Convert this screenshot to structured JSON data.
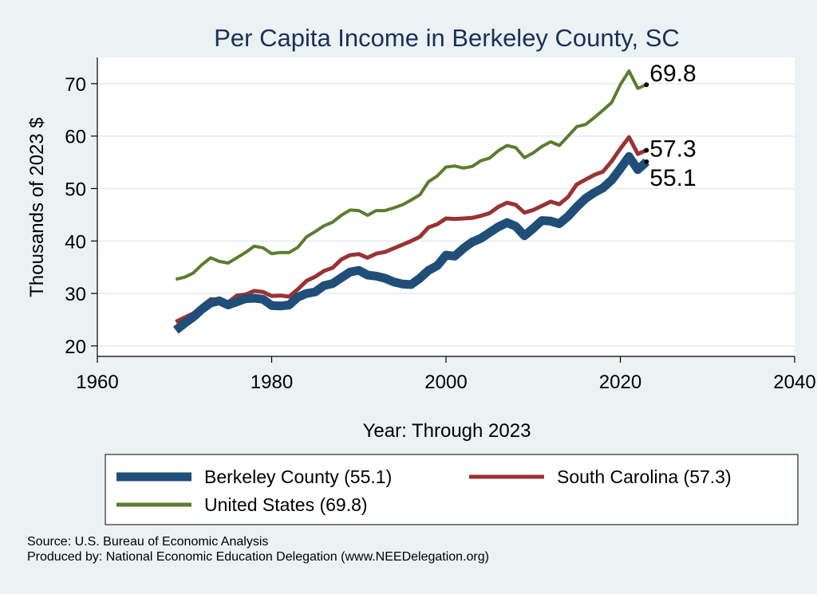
{
  "chart_data": {
    "type": "line",
    "title": "Per Capita Income in Berkeley County, SC",
    "xlabel": "Year: Through 2023",
    "ylabel": "Thousands of 2023 $",
    "xlim": [
      1960,
      2040
    ],
    "ylim": [
      18,
      75
    ],
    "xticks": [
      1960,
      1980,
      2000,
      2020,
      2040
    ],
    "yticks": [
      20,
      30,
      40,
      50,
      60,
      70
    ],
    "grid": true,
    "legend_position": "bottom",
    "series": [
      {
        "name": "United States",
        "legend_label": "United States (69.8)",
        "end_label": "69.8",
        "color": "#5a7d2e",
        "x": [
          1969,
          1970,
          1971,
          1972,
          1973,
          1974,
          1975,
          1976,
          1977,
          1978,
          1979,
          1980,
          1981,
          1982,
          1983,
          1984,
          1985,
          1986,
          1987,
          1988,
          1989,
          1990,
          1991,
          1992,
          1993,
          1994,
          1995,
          1996,
          1997,
          1998,
          1999,
          2000,
          2001,
          2002,
          2003,
          2004,
          2005,
          2006,
          2007,
          2008,
          2009,
          2010,
          2011,
          2012,
          2013,
          2014,
          2015,
          2016,
          2017,
          2018,
          2019,
          2020,
          2021,
          2022,
          2023
        ],
        "y": [
          32.7,
          33.1,
          33.9,
          35.5,
          36.8,
          36.1,
          35.8,
          36.8,
          37.8,
          39.0,
          38.7,
          37.6,
          37.8,
          37.8,
          38.8,
          40.8,
          41.8,
          42.9,
          43.6,
          44.9,
          45.9,
          45.8,
          44.9,
          45.8,
          45.8,
          46.3,
          46.9,
          47.8,
          48.8,
          51.3,
          52.4,
          54.1,
          54.3,
          53.9,
          54.2,
          55.3,
          55.8,
          57.2,
          58.2,
          57.8,
          55.9,
          56.8,
          58.0,
          58.9,
          58.2,
          60.0,
          61.8,
          62.2,
          63.5,
          64.9,
          66.4,
          69.8,
          72.4,
          69.1,
          69.8
        ]
      },
      {
        "name": "South Carolina",
        "legend_label": "South Carolina (57.3)",
        "end_label": "57.3",
        "color": "#993333",
        "x": [
          1969,
          1970,
          1971,
          1972,
          1973,
          1974,
          1975,
          1976,
          1977,
          1978,
          1979,
          1980,
          1981,
          1982,
          1983,
          1984,
          1985,
          1986,
          1987,
          1988,
          1989,
          1990,
          1991,
          1992,
          1993,
          1994,
          1995,
          1996,
          1997,
          1998,
          1999,
          2000,
          2001,
          2002,
          2003,
          2004,
          2005,
          2006,
          2007,
          2008,
          2009,
          2010,
          2011,
          2012,
          2013,
          2014,
          2015,
          2016,
          2017,
          2018,
          2019,
          2020,
          2021,
          2022,
          2023
        ],
        "y": [
          24.6,
          25.4,
          26.2,
          27.6,
          28.9,
          28.8,
          28.3,
          29.6,
          29.8,
          30.5,
          30.3,
          29.5,
          29.6,
          29.4,
          30.8,
          32.4,
          33.2,
          34.3,
          34.9,
          36.5,
          37.3,
          37.5,
          36.8,
          37.6,
          37.9,
          38.6,
          39.3,
          40.0,
          40.8,
          42.6,
          43.2,
          44.3,
          44.2,
          44.3,
          44.4,
          44.8,
          45.3,
          46.5,
          47.3,
          46.9,
          45.4,
          45.9,
          46.7,
          47.5,
          47.0,
          48.4,
          50.8,
          51.7,
          52.6,
          53.2,
          55.2,
          57.6,
          59.8,
          56.6,
          57.3
        ]
      },
      {
        "name": "Berkeley County",
        "legend_label": "Berkeley County (55.1)",
        "end_label": "55.1",
        "color": "#1f4e79",
        "x": [
          1969,
          1970,
          1971,
          1972,
          1973,
          1974,
          1975,
          1976,
          1977,
          1978,
          1979,
          1980,
          1981,
          1982,
          1983,
          1984,
          1985,
          1986,
          1987,
          1988,
          1989,
          1990,
          1991,
          1992,
          1993,
          1994,
          1995,
          1996,
          1997,
          1998,
          1999,
          2000,
          2001,
          2002,
          2003,
          2004,
          2005,
          2006,
          2007,
          2008,
          2009,
          2010,
          2011,
          2012,
          2013,
          2014,
          2015,
          2016,
          2017,
          2018,
          2019,
          2020,
          2021,
          2022,
          2023
        ],
        "y": [
          23.0,
          24.3,
          25.5,
          27.0,
          28.2,
          28.6,
          27.8,
          28.4,
          29.0,
          29.1,
          28.9,
          27.7,
          27.6,
          27.8,
          29.3,
          30.0,
          30.3,
          31.5,
          31.9,
          33.0,
          34.1,
          34.4,
          33.5,
          33.3,
          32.9,
          32.2,
          31.8,
          31.7,
          32.9,
          34.4,
          35.3,
          37.3,
          37.1,
          38.6,
          39.8,
          40.5,
          41.6,
          42.7,
          43.5,
          42.8,
          41.0,
          42.4,
          43.9,
          43.8,
          43.3,
          44.7,
          46.5,
          48.1,
          49.2,
          50.1,
          51.6,
          53.8,
          56.1,
          53.6,
          55.1
        ]
      }
    ],
    "legend": [
      {
        "label": "Berkeley County (55.1)",
        "series": "Berkeley County"
      },
      {
        "label": "South Carolina (57.3)",
        "series": "South Carolina"
      },
      {
        "label": "United States (69.8)",
        "series": "United States"
      }
    ]
  },
  "footer": {
    "source": "Source: U.S. Bureau of Economic Analysis",
    "produced_by": "Produced by: National Economic Education Delegation (www.NEEDelegation.org)"
  }
}
